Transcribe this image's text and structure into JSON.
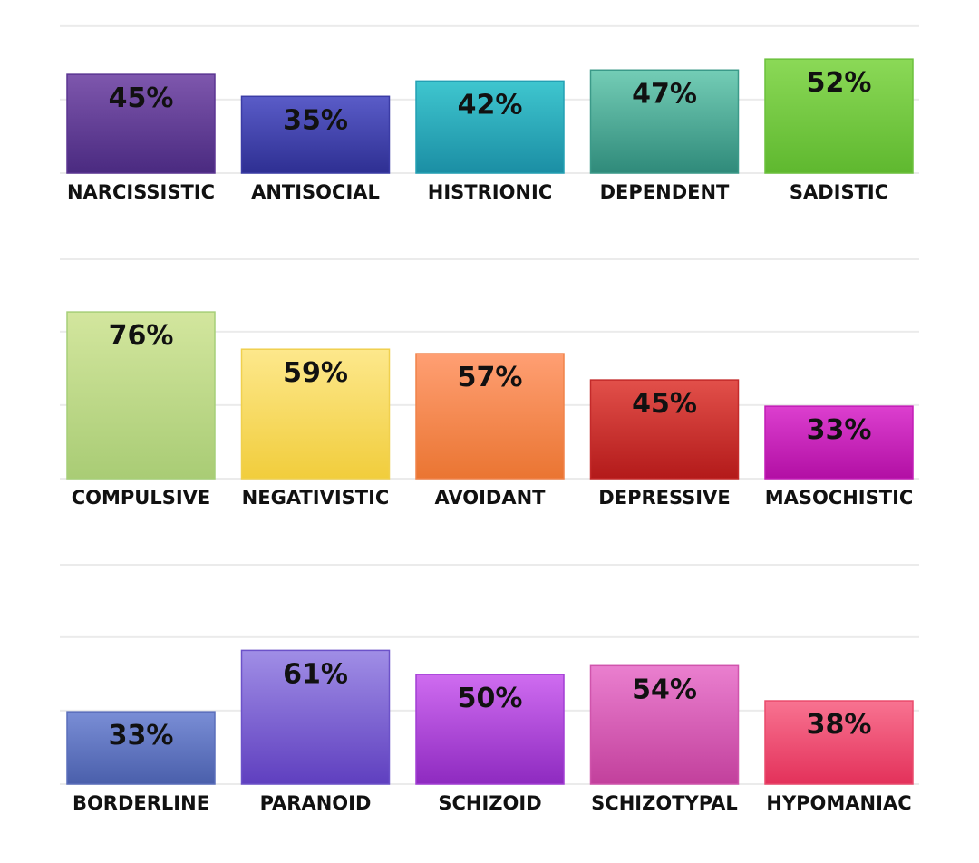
{
  "chart_data": [
    {
      "type": "bar",
      "categories": [
        "NARCISSISTIC",
        "ANTISOCIAL",
        "HISTRIONIC",
        "DEPENDENT",
        "SADISTIC"
      ],
      "values": [
        45,
        35,
        42,
        47,
        52
      ],
      "value_labels": [
        "45%",
        "35%",
        "42%",
        "47%",
        "52%"
      ],
      "ylim": [
        0,
        100
      ],
      "grid": true,
      "bar_colors": [
        {
          "top": "#7e57ad",
          "bottom": "#4a2a80",
          "stroke": "#5b3592"
        },
        {
          "top": "#5a5cc8",
          "bottom": "#2e2f92",
          "stroke": "#3b3ca6"
        },
        {
          "top": "#3fc6cf",
          "bottom": "#1b8ea4",
          "stroke": "#23a0b4"
        },
        {
          "top": "#74cdb6",
          "bottom": "#2f8a7a",
          "stroke": "#3b9a89"
        },
        {
          "top": "#8bd957",
          "bottom": "#5fb82f",
          "stroke": "#6cc13d"
        }
      ]
    },
    {
      "type": "bar",
      "categories": [
        "COMPULSIVE",
        "NEGATIVISTIC",
        "AVOIDANT",
        "DEPRESSIVE",
        "MASOCHISTIC"
      ],
      "values": [
        76,
        59,
        57,
        45,
        33
      ],
      "value_labels": [
        "76%",
        "59%",
        "57%",
        "45%",
        "33%"
      ],
      "ylim": [
        0,
        100
      ],
      "grid": true,
      "bar_colors": [
        {
          "top": "#d3e69e",
          "bottom": "#a9cc75",
          "stroke": "#a6cf78"
        },
        {
          "top": "#fde88c",
          "bottom": "#f1cd3c",
          "stroke": "#f0d04e"
        },
        {
          "top": "#ff9f73",
          "bottom": "#ea7532",
          "stroke": "#f0834a"
        },
        {
          "top": "#e2504a",
          "bottom": "#b31a1a",
          "stroke": "#c42a2a"
        },
        {
          "top": "#dc3fcf",
          "bottom": "#b20fa4",
          "stroke": "#c21cb6"
        }
      ]
    },
    {
      "type": "bar",
      "categories": [
        "BORDERLINE",
        "PARANOID",
        "SCHIZOID",
        "SCHIZOTYPAL",
        "HYPOMANIAC"
      ],
      "values": [
        33,
        61,
        50,
        54,
        38
      ],
      "value_labels": [
        "33%",
        "61%",
        "50%",
        "54%",
        "38%"
      ],
      "ylim": [
        0,
        100
      ],
      "grid": true,
      "bar_colors": [
        {
          "top": "#7a8ed6",
          "bottom": "#4a5fab",
          "stroke": "#5a6ebb"
        },
        {
          "top": "#a08ee6",
          "bottom": "#5f3fbf",
          "stroke": "#6c52c9"
        },
        {
          "top": "#cf6cf0",
          "bottom": "#8e2ac0",
          "stroke": "#a23ed4"
        },
        {
          "top": "#ea7fcf",
          "bottom": "#c2409c",
          "stroke": "#d054ac"
        },
        {
          "top": "#f87391",
          "bottom": "#e3315a",
          "stroke": "#ea4a6c"
        }
      ]
    }
  ]
}
